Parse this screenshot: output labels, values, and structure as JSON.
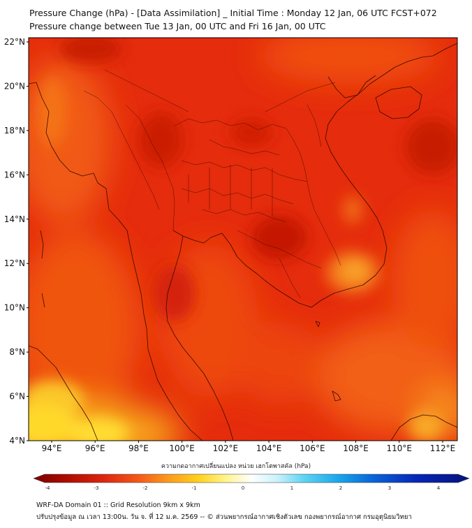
{
  "title_line1": "Pressure Change (hPa) - [Data Assimilation] _ Initial Time : Monday 12 Jan, 06 UTC FCST+072",
  "title_line2": "Pressure change between Tue 13 Jan, 00 UTC and Fri 16 Jan, 00 UTC",
  "map": {
    "lat_labels": [
      "22°N",
      "20°N",
      "18°N",
      "16°N",
      "14°N",
      "12°N",
      "10°N",
      "8°N",
      "6°N",
      "4°N"
    ],
    "lon_labels": [
      "94°E",
      "96°E",
      "98°E",
      "100°E",
      "102°E",
      "104°E",
      "106°E",
      "108°E",
      "110°E",
      "112°E"
    ],
    "colors": {
      "deep_red": "#c41500",
      "red": "#e32b0b",
      "orange": "#f26015",
      "yellow": "#ffe21c",
      "ocean_light": "#f58a2a"
    }
  },
  "colorbar": {
    "label": "ความกดอากาศเปลี่ยนแปลง หน่วย เฮกโตพาสคัล (hPa)",
    "ticks": [
      "-4",
      "-3",
      "-2",
      "-1",
      "0",
      "1",
      "2",
      "3",
      "4"
    ]
  },
  "footer_line1": "WRF-DA Domain 01 :: Grid Resolution 9km x 9km",
  "footer_line2": "ปรับปรุงข้อมูล ณ เวลา 13:00น. วัน จ. ที่ 12 ม.ค. 2569 -- © ส่วนพยากรณ์อากาศเชิงตัวเลข กองพยากรณ์อากาศ กรมอุตุนิยมวิทยา"
}
